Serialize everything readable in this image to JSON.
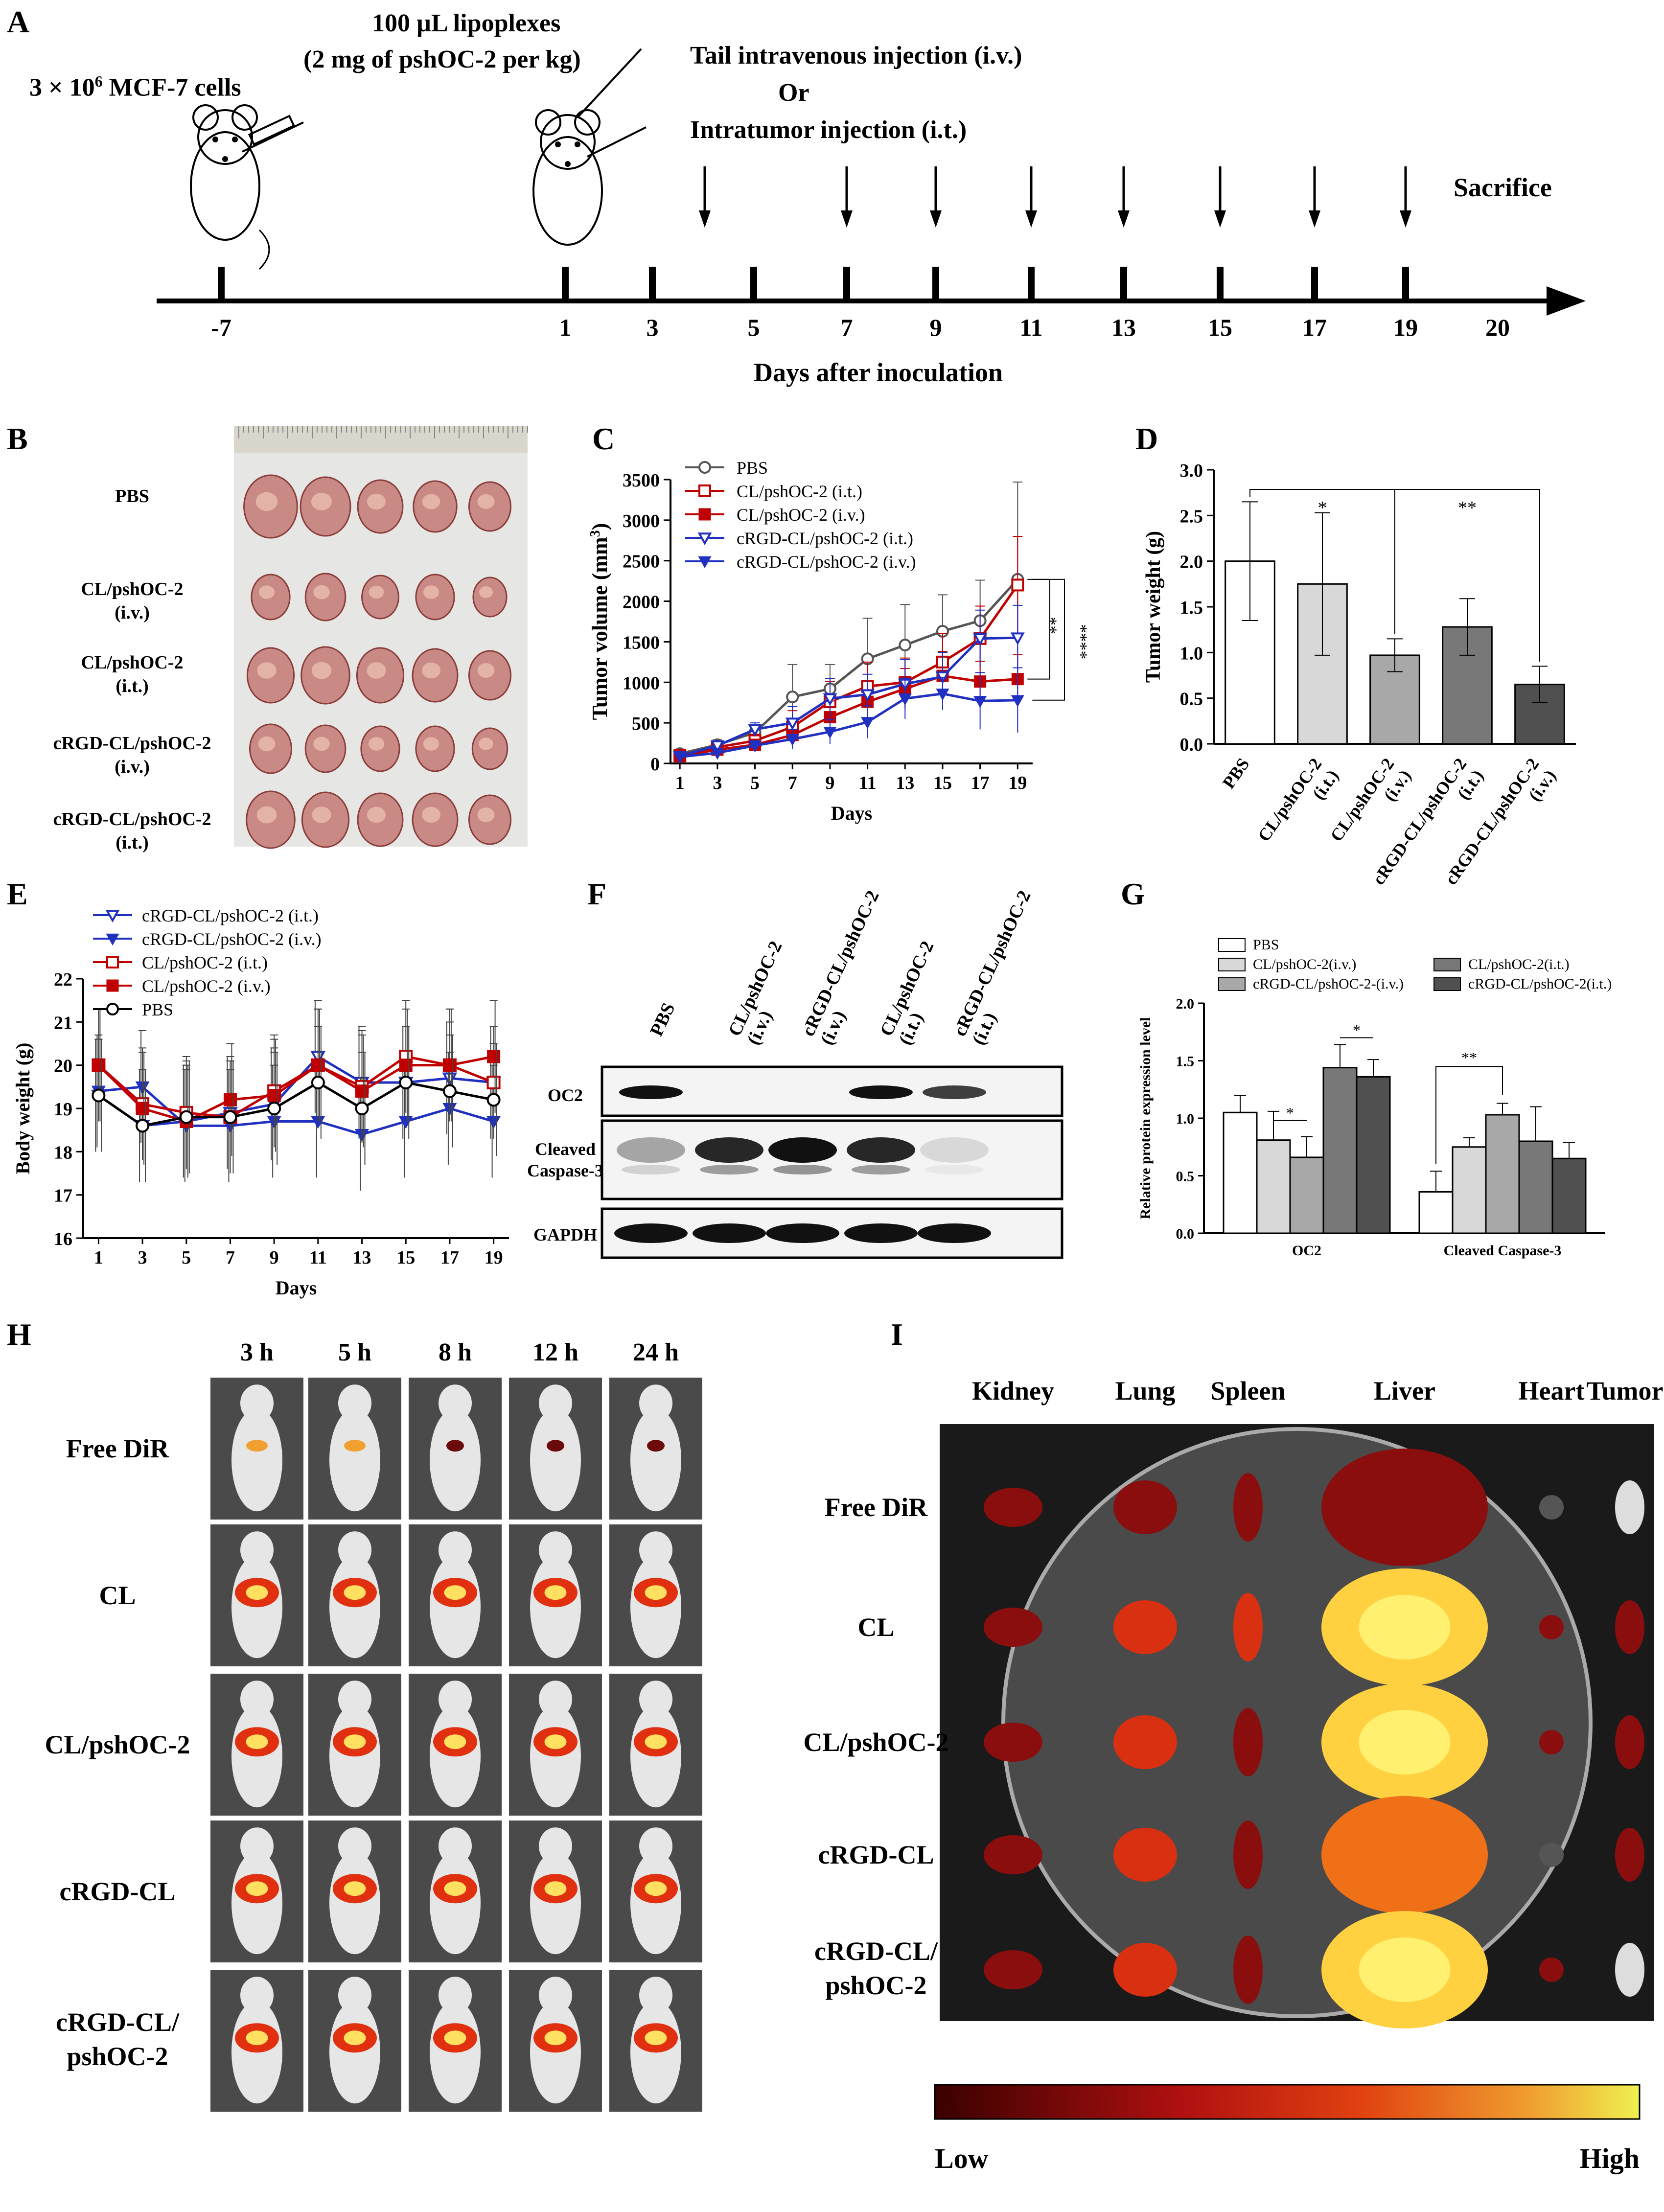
{
  "panels": {
    "A": {
      "letter": "A",
      "cells_label": "3 × 10",
      "cells_sup": "6",
      "cells_rest": " MCF-7 cells",
      "lipo_line1": "100 µL  lipoplexes",
      "lipo_line2": "(2 mg of pshOC-2 per kg)",
      "inj_line1": "Tail intravenous injection  (i.v.)",
      "inj_line2": "Or",
      "inj_line3": "Intratumor injection  (i.t.)",
      "sacrifice": "Sacrifice",
      "days": [
        "-7",
        "1",
        "3",
        "5",
        "7",
        "9",
        "11",
        "13",
        "15",
        "17",
        "19",
        "20"
      ],
      "xlabel": "Days after inoculation"
    },
    "B": {
      "letter": "B",
      "rows": [
        "PBS",
        "CL/pshOC-2\n(i.v.)",
        "CL/pshOC-2\n(i.t.)",
        "cRGD-CL/pshOC-2\n(i.v.)",
        "cRGD-CL/pshOC-2\n(i.t.)"
      ]
    },
    "F": {
      "letter": "F",
      "lanes": [
        "PBS",
        "CL/pshOC-2\n(i.v.)",
        "cRGD-CL/pshOC-2\n(i.v.)",
        "CL/pshOC-2\n(i.t.)",
        "cRGD-CL/pshOC-2\n(i.t.)"
      ],
      "bands": [
        "OC2",
        "Cleaved\nCaspase-3",
        "GAPDH"
      ]
    },
    "H": {
      "letter": "H",
      "times": [
        "3 h",
        "5 h",
        "8 h",
        "12 h",
        "24 h"
      ],
      "rows": [
        "Free DiR",
        "CL",
        "CL/pshOC-2",
        "cRGD-CL",
        "cRGD-CL/\npshOC-2"
      ]
    },
    "I": {
      "letter": "I",
      "organs": [
        "Kidney",
        "Lung",
        "Spleen",
        "Liver",
        "Heart",
        "Tumor"
      ],
      "rows": [
        "Free DiR",
        "CL",
        "CL/pshOC-2",
        "cRGD-CL",
        "cRGD-CL/\npshOC-2"
      ],
      "scale_low": "Low",
      "scale_high": "High"
    }
  },
  "chart_data": [
    {
      "id": "C",
      "type": "line",
      "letter": "C",
      "xlabel": "Days",
      "ylabel": "Tumor volume (mm",
      "ylabel_sup": "3",
      "ylabel_end": ")",
      "x": [
        1,
        3,
        5,
        7,
        9,
        11,
        13,
        15,
        17,
        19
      ],
      "ylim": [
        0,
        3500
      ],
      "yticks": [
        0,
        500,
        1000,
        1500,
        2000,
        2500,
        3000,
        3500
      ],
      "series": [
        {
          "name": "PBS",
          "color": "#555555",
          "marker": "circle-open",
          "values": [
            120,
            230,
            380,
            820,
            920,
            1290,
            1460,
            1630,
            1760,
            2270
          ],
          "err": [
            30,
            60,
            100,
            400,
            300,
            500,
            500,
            450,
            500,
            1200
          ]
        },
        {
          "name": "CL/pshOC-2 (i.t.)",
          "color": "#c00000",
          "marker": "square-open",
          "values": [
            100,
            200,
            280,
            450,
            760,
            950,
            1000,
            1250,
            1540,
            2200
          ],
          "err": [
            30,
            60,
            80,
            200,
            250,
            300,
            300,
            350,
            400,
            600
          ]
        },
        {
          "name": "CL/pshOC-2 (i.v.)",
          "color": "#c00000",
          "marker": "square-filled",
          "values": [
            90,
            170,
            230,
            350,
            570,
            760,
            920,
            1080,
            1010,
            1040
          ],
          "err": [
            20,
            50,
            60,
            150,
            200,
            250,
            250,
            300,
            250,
            300
          ]
        },
        {
          "name": "cRGD-CL/pshOC-2 (i.t.)",
          "color": "#2030c0",
          "marker": "tri-down-open",
          "values": [
            90,
            220,
            420,
            500,
            800,
            850,
            980,
            1070,
            1540,
            1550
          ],
          "err": [
            30,
            60,
            80,
            200,
            250,
            250,
            300,
            300,
            350,
            400
          ]
        },
        {
          "name": "cRGD-CL/pshOC-2 (i.v.)",
          "color": "#2030c0",
          "marker": "tri-down-filled",
          "values": [
            80,
            130,
            220,
            300,
            390,
            510,
            800,
            860,
            770,
            780
          ],
          "err": [
            20,
            40,
            60,
            120,
            150,
            200,
            250,
            200,
            350,
            400
          ]
        }
      ],
      "sig": [
        "**",
        "****"
      ]
    },
    {
      "id": "D",
      "type": "bar",
      "letter": "D",
      "ylabel": "Tumor weight (g)",
      "categories": [
        "PBS",
        "CL/pshOC-2\n(i.t.)",
        "CL/pshOC-2\n(i.v.)",
        "cRGD-CL/pshOC-2\n(i.t.)",
        "cRGD-CL/pshOC-2\n(i.v.)"
      ],
      "values": [
        2.0,
        1.75,
        0.97,
        1.28,
        0.65
      ],
      "err": [
        0.65,
        0.78,
        0.18,
        0.31,
        0.2
      ],
      "colors": [
        "#ffffff",
        "#d8d8d8",
        "#a8a8a8",
        "#787878",
        "#505050"
      ],
      "ylim": [
        0,
        3.0
      ],
      "yticks": [
        0.0,
        0.5,
        1.0,
        1.5,
        2.0,
        2.5,
        3.0
      ],
      "sig": [
        "*",
        "**"
      ]
    },
    {
      "id": "E",
      "type": "line",
      "letter": "E",
      "xlabel": "Days",
      "ylabel": "Body weight (g)",
      "x": [
        1,
        3,
        5,
        7,
        9,
        11,
        13,
        15,
        17,
        19
      ],
      "ylim": [
        16,
        22
      ],
      "yticks": [
        16,
        17,
        18,
        19,
        20,
        21,
        22
      ],
      "series": [
        {
          "name": "cRGD-CL/pshOC-2 (i.t.)",
          "color": "#2030c0",
          "marker": "tri-down-open",
          "values": [
            19.3,
            18.6,
            18.7,
            18.9,
            19.1,
            20.2,
            19.6,
            19.6,
            19.7,
            19.6
          ]
        },
        {
          "name": "cRGD-CL/pshOC-2 (i.v.)",
          "color": "#2030c0",
          "marker": "tri-down-filled",
          "values": [
            19.4,
            19.5,
            18.6,
            18.6,
            18.7,
            18.7,
            18.4,
            18.7,
            19.0,
            18.7
          ]
        },
        {
          "name": "CL/pshOC-2 (i.t.)",
          "color": "#c00000",
          "marker": "square-open",
          "values": [
            20.0,
            19.1,
            18.9,
            18.8,
            19.4,
            20.0,
            19.5,
            20.2,
            20.0,
            19.6
          ]
        },
        {
          "name": "CL/pshOC-2 (i.v.)",
          "color": "#c00000",
          "marker": "square-filled",
          "values": [
            20.0,
            19.0,
            18.7,
            19.2,
            19.3,
            20.0,
            19.4,
            20.0,
            20.0,
            20.2
          ]
        },
        {
          "name": "PBS",
          "color": "#000000",
          "marker": "circle-open",
          "values": [
            19.3,
            18.6,
            18.8,
            18.8,
            19.0,
            19.6,
            19.0,
            19.6,
            19.4,
            19.2
          ]
        }
      ]
    },
    {
      "id": "G",
      "type": "bar",
      "letter": "G",
      "ylabel": "Relative protein expression level",
      "categories": [
        "OC2",
        "Cleaved Caspase-3"
      ],
      "legend": [
        "PBS",
        "CL/pshOC-2(i.v.)",
        "cRGD-CL/pshOC-2-(i.v.)",
        "CL/pshOC-2(i.t.)",
        "cRGD-CL/pshOC-2(i.t.)"
      ],
      "colors": [
        "#ffffff",
        "#d8d8d8",
        "#a8a8a8",
        "#787878",
        "#505050"
      ],
      "series": [
        {
          "name": "PBS",
          "values": [
            1.05,
            0.36
          ],
          "err": [
            0.15,
            0.18
          ]
        },
        {
          "name": "CL/pshOC-2(i.v.)",
          "values": [
            0.81,
            0.75
          ],
          "err": [
            0.25,
            0.08
          ]
        },
        {
          "name": "cRGD-CL/pshOC-2-(i.v.)",
          "values": [
            0.66,
            1.03
          ],
          "err": [
            0.18,
            0.1
          ]
        },
        {
          "name": "CL/pshOC-2(i.t.)",
          "values": [
            1.44,
            0.8
          ],
          "err": [
            0.2,
            0.3
          ]
        },
        {
          "name": "cRGD-CL/pshOC-2(i.t.)",
          "values": [
            1.36,
            0.65
          ],
          "err": [
            0.15,
            0.14
          ]
        }
      ],
      "ylim": [
        0,
        2.0
      ],
      "yticks": [
        0.0,
        0.5,
        1.0,
        1.5,
        2.0
      ],
      "sig": [
        "*",
        "*",
        "**"
      ]
    }
  ]
}
